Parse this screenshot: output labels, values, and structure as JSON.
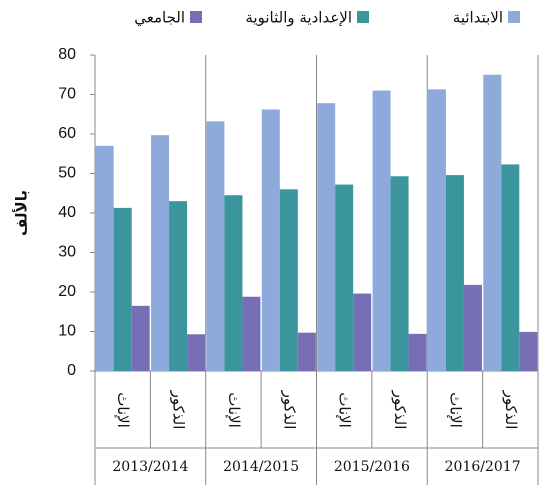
{
  "chart_data": {
    "type": "bar",
    "ylabel": "بالألف",
    "categories": [
      "الإناث",
      "الذكور",
      "الإناث",
      "الذكور",
      "الإناث",
      "الذكور",
      "الإناث",
      "الذكور"
    ],
    "groups": [
      "2013/2014",
      "2014/2015",
      "2015/2016",
      "2016/2017"
    ],
    "series": [
      {
        "name": "الابتدائية",
        "color": "#8eaadb",
        "values": [
          57,
          59.7,
          63.2,
          66.2,
          67.8,
          71,
          71.3,
          75
        ]
      },
      {
        "name": "الإعدادية والثانوية",
        "color": "#3a969c",
        "values": [
          41.3,
          43,
          44.5,
          46,
          47.2,
          49.3,
          49.6,
          52.3
        ]
      },
      {
        "name": "الجامعي",
        "color": "#766fb5",
        "values": [
          16.5,
          9.3,
          18.8,
          9.7,
          19.6,
          9.4,
          21.8,
          9.9
        ]
      }
    ],
    "ylim": [
      0,
      80
    ],
    "yticks": [
      0,
      10,
      20,
      30,
      40,
      50,
      60,
      70,
      80
    ]
  }
}
